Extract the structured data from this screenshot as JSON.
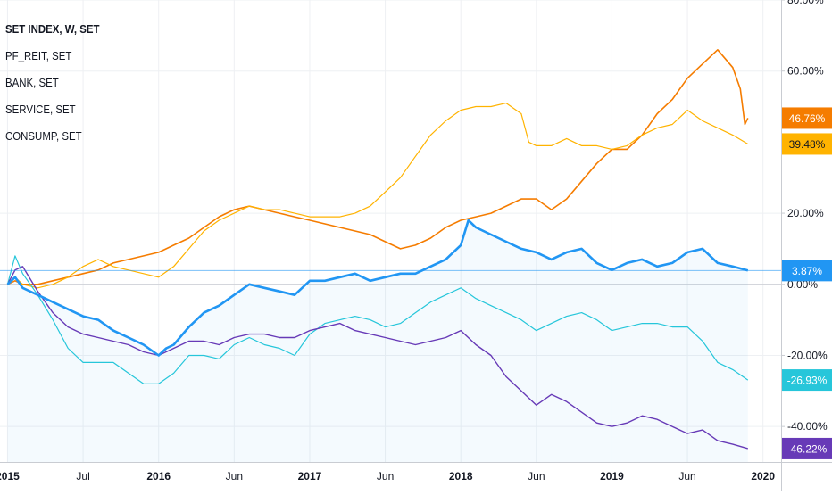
{
  "chart_data": {
    "type": "line",
    "legend": [
      {
        "label": "SET INDEX, W, SET"
      },
      {
        "label": "PF_REIT, SET"
      },
      {
        "label": "BANK, SET"
      },
      {
        "label": "SERVICE, SET"
      },
      {
        "label": "CONSUMP, SET"
      }
    ],
    "y_ticks": [
      {
        "value": 80,
        "label": "80.00%"
      },
      {
        "value": 60,
        "label": "60.00%"
      },
      {
        "value": 20,
        "label": "20.00%"
      },
      {
        "value": 0,
        "label": "0.00%"
      },
      {
        "value": -20,
        "label": "-20.00%"
      },
      {
        "value": -40,
        "label": "-40.00%"
      }
    ],
    "x_ticks": [
      {
        "x": 2015.0,
        "label": "2015"
      },
      {
        "x": 2015.5,
        "label": "Jul"
      },
      {
        "x": 2016.0,
        "label": "2016"
      },
      {
        "x": 2016.5,
        "label": "Jun"
      },
      {
        "x": 2017.0,
        "label": "2017"
      },
      {
        "x": 2017.5,
        "label": "Jun"
      },
      {
        "x": 2018.0,
        "label": "2018"
      },
      {
        "x": 2018.5,
        "label": "Jun"
      },
      {
        "x": 2019.0,
        "label": "2019"
      },
      {
        "x": 2019.5,
        "label": "Jun"
      },
      {
        "x": 2020.0,
        "label": "2020"
      }
    ],
    "ylim": [
      -50,
      80
    ],
    "xlim": [
      2014.95,
      2020.12
    ],
    "grid": true,
    "series": [
      {
        "key": "set_index",
        "color": "#2196f3",
        "width": 2.6,
        "area": true,
        "last_label": "3.87%",
        "points": [
          [
            2015.0,
            0
          ],
          [
            2015.05,
            2
          ],
          [
            2015.1,
            -1
          ],
          [
            2015.2,
            -3
          ],
          [
            2015.3,
            -5
          ],
          [
            2015.4,
            -7
          ],
          [
            2015.5,
            -9
          ],
          [
            2015.6,
            -10
          ],
          [
            2015.7,
            -13
          ],
          [
            2015.8,
            -15
          ],
          [
            2015.9,
            -17
          ],
          [
            2016.0,
            -20
          ],
          [
            2016.05,
            -18
          ],
          [
            2016.1,
            -17
          ],
          [
            2016.2,
            -12
          ],
          [
            2016.3,
            -8
          ],
          [
            2016.4,
            -6
          ],
          [
            2016.5,
            -3
          ],
          [
            2016.6,
            0
          ],
          [
            2016.7,
            -1
          ],
          [
            2016.8,
            -2
          ],
          [
            2016.9,
            -3
          ],
          [
            2017.0,
            1
          ],
          [
            2017.1,
            1
          ],
          [
            2017.2,
            2
          ],
          [
            2017.3,
            3
          ],
          [
            2017.4,
            1
          ],
          [
            2017.5,
            2
          ],
          [
            2017.6,
            3
          ],
          [
            2017.7,
            3
          ],
          [
            2017.8,
            5
          ],
          [
            2017.9,
            7
          ],
          [
            2018.0,
            11
          ],
          [
            2018.05,
            18
          ],
          [
            2018.1,
            16
          ],
          [
            2018.2,
            14
          ],
          [
            2018.3,
            12
          ],
          [
            2018.4,
            10
          ],
          [
            2018.5,
            9
          ],
          [
            2018.6,
            7
          ],
          [
            2018.7,
            9
          ],
          [
            2018.8,
            10
          ],
          [
            2018.9,
            6
          ],
          [
            2019.0,
            4
          ],
          [
            2019.1,
            6
          ],
          [
            2019.2,
            7
          ],
          [
            2019.3,
            5
          ],
          [
            2019.4,
            6
          ],
          [
            2019.5,
            9
          ],
          [
            2019.6,
            10
          ],
          [
            2019.7,
            6
          ],
          [
            2019.8,
            5
          ],
          [
            2019.9,
            3.87
          ]
        ]
      },
      {
        "key": "pf_reit",
        "color": "#f57c00",
        "width": 1.6,
        "area": false,
        "last_label": "46.76%",
        "points": [
          [
            2015.0,
            0
          ],
          [
            2015.05,
            1
          ],
          [
            2015.1,
            0
          ],
          [
            2015.2,
            0
          ],
          [
            2015.3,
            1
          ],
          [
            2015.4,
            2
          ],
          [
            2015.5,
            3
          ],
          [
            2015.6,
            4
          ],
          [
            2015.7,
            6
          ],
          [
            2015.8,
            7
          ],
          [
            2015.9,
            8
          ],
          [
            2016.0,
            9
          ],
          [
            2016.05,
            10
          ],
          [
            2016.1,
            11
          ],
          [
            2016.2,
            13
          ],
          [
            2016.3,
            16
          ],
          [
            2016.4,
            19
          ],
          [
            2016.5,
            21
          ],
          [
            2016.6,
            22
          ],
          [
            2016.7,
            21
          ],
          [
            2016.8,
            20
          ],
          [
            2016.9,
            19
          ],
          [
            2017.0,
            18
          ],
          [
            2017.1,
            17
          ],
          [
            2017.2,
            16
          ],
          [
            2017.3,
            15
          ],
          [
            2017.4,
            14
          ],
          [
            2017.5,
            12
          ],
          [
            2017.6,
            10
          ],
          [
            2017.7,
            11
          ],
          [
            2017.8,
            13
          ],
          [
            2017.9,
            16
          ],
          [
            2018.0,
            18
          ],
          [
            2018.1,
            19
          ],
          [
            2018.2,
            20
          ],
          [
            2018.3,
            22
          ],
          [
            2018.4,
            24
          ],
          [
            2018.5,
            24
          ],
          [
            2018.6,
            21
          ],
          [
            2018.7,
            24
          ],
          [
            2018.8,
            29
          ],
          [
            2018.9,
            34
          ],
          [
            2019.0,
            38
          ],
          [
            2019.1,
            38
          ],
          [
            2019.2,
            42
          ],
          [
            2019.3,
            48
          ],
          [
            2019.4,
            52
          ],
          [
            2019.5,
            58
          ],
          [
            2019.6,
            62
          ],
          [
            2019.7,
            66
          ],
          [
            2019.8,
            61
          ],
          [
            2019.85,
            55
          ],
          [
            2019.88,
            45
          ],
          [
            2019.9,
            46.76
          ]
        ]
      },
      {
        "key": "bank",
        "color": "#ffb300",
        "width": 1.2,
        "area": false,
        "last_label": "39.48%",
        "points": [
          [
            2015.0,
            0
          ],
          [
            2015.05,
            2
          ],
          [
            2015.1,
            0
          ],
          [
            2015.2,
            -1
          ],
          [
            2015.3,
            0
          ],
          [
            2015.4,
            2
          ],
          [
            2015.5,
            5
          ],
          [
            2015.6,
            7
          ],
          [
            2015.7,
            5
          ],
          [
            2015.8,
            4
          ],
          [
            2015.9,
            3
          ],
          [
            2016.0,
            2
          ],
          [
            2016.1,
            5
          ],
          [
            2016.2,
            10
          ],
          [
            2016.3,
            15
          ],
          [
            2016.4,
            18
          ],
          [
            2016.5,
            20
          ],
          [
            2016.6,
            22
          ],
          [
            2016.7,
            21
          ],
          [
            2016.8,
            21
          ],
          [
            2016.9,
            20
          ],
          [
            2017.0,
            19
          ],
          [
            2017.1,
            19
          ],
          [
            2017.2,
            19
          ],
          [
            2017.3,
            20
          ],
          [
            2017.4,
            22
          ],
          [
            2017.5,
            26
          ],
          [
            2017.6,
            30
          ],
          [
            2017.7,
            36
          ],
          [
            2017.8,
            42
          ],
          [
            2017.9,
            46
          ],
          [
            2018.0,
            49
          ],
          [
            2018.1,
            50
          ],
          [
            2018.2,
            50
          ],
          [
            2018.3,
            51
          ],
          [
            2018.4,
            48
          ],
          [
            2018.45,
            40
          ],
          [
            2018.5,
            39
          ],
          [
            2018.6,
            39
          ],
          [
            2018.7,
            41
          ],
          [
            2018.8,
            39
          ],
          [
            2018.9,
            39
          ],
          [
            2019.0,
            38
          ],
          [
            2019.1,
            39
          ],
          [
            2019.2,
            42
          ],
          [
            2019.3,
            44
          ],
          [
            2019.4,
            45
          ],
          [
            2019.5,
            49
          ],
          [
            2019.6,
            46
          ],
          [
            2019.7,
            44
          ],
          [
            2019.8,
            42
          ],
          [
            2019.9,
            39.48
          ]
        ]
      },
      {
        "key": "service",
        "color": "#26c6da",
        "width": 1.2,
        "area": false,
        "last_label": "-26.93%",
        "points": [
          [
            2015.0,
            0
          ],
          [
            2015.05,
            8
          ],
          [
            2015.1,
            3
          ],
          [
            2015.2,
            -3
          ],
          [
            2015.3,
            -10
          ],
          [
            2015.4,
            -18
          ],
          [
            2015.5,
            -22
          ],
          [
            2015.6,
            -22
          ],
          [
            2015.7,
            -22
          ],
          [
            2015.8,
            -25
          ],
          [
            2015.9,
            -28
          ],
          [
            2016.0,
            -28
          ],
          [
            2016.1,
            -25
          ],
          [
            2016.2,
            -20
          ],
          [
            2016.3,
            -20
          ],
          [
            2016.4,
            -21
          ],
          [
            2016.5,
            -17
          ],
          [
            2016.6,
            -15
          ],
          [
            2016.7,
            -17
          ],
          [
            2016.8,
            -18
          ],
          [
            2016.9,
            -20
          ],
          [
            2017.0,
            -14
          ],
          [
            2017.1,
            -11
          ],
          [
            2017.2,
            -10
          ],
          [
            2017.3,
            -9
          ],
          [
            2017.4,
            -10
          ],
          [
            2017.5,
            -12
          ],
          [
            2017.6,
            -11
          ],
          [
            2017.7,
            -8
          ],
          [
            2017.8,
            -5
          ],
          [
            2017.9,
            -3
          ],
          [
            2018.0,
            -1
          ],
          [
            2018.1,
            -4
          ],
          [
            2018.2,
            -6
          ],
          [
            2018.3,
            -8
          ],
          [
            2018.4,
            -10
          ],
          [
            2018.5,
            -13
          ],
          [
            2018.6,
            -11
          ],
          [
            2018.7,
            -9
          ],
          [
            2018.8,
            -8
          ],
          [
            2018.9,
            -10
          ],
          [
            2019.0,
            -13
          ],
          [
            2019.1,
            -12
          ],
          [
            2019.2,
            -11
          ],
          [
            2019.3,
            -11
          ],
          [
            2019.4,
            -12
          ],
          [
            2019.5,
            -12
          ],
          [
            2019.6,
            -16
          ],
          [
            2019.7,
            -22
          ],
          [
            2019.8,
            -24
          ],
          [
            2019.9,
            -26.93
          ]
        ]
      },
      {
        "key": "consump",
        "color": "#673ab7",
        "width": 1.4,
        "area": false,
        "last_label": "-46.22%",
        "points": [
          [
            2015.0,
            0
          ],
          [
            2015.05,
            4
          ],
          [
            2015.1,
            5
          ],
          [
            2015.2,
            -2
          ],
          [
            2015.3,
            -8
          ],
          [
            2015.4,
            -12
          ],
          [
            2015.5,
            -14
          ],
          [
            2015.6,
            -15
          ],
          [
            2015.7,
            -16
          ],
          [
            2015.8,
            -17
          ],
          [
            2015.9,
            -19
          ],
          [
            2016.0,
            -20
          ],
          [
            2016.1,
            -18
          ],
          [
            2016.2,
            -16
          ],
          [
            2016.3,
            -16
          ],
          [
            2016.4,
            -17
          ],
          [
            2016.5,
            -15
          ],
          [
            2016.6,
            -14
          ],
          [
            2016.7,
            -14
          ],
          [
            2016.8,
            -15
          ],
          [
            2016.9,
            -15
          ],
          [
            2017.0,
            -13
          ],
          [
            2017.1,
            -12
          ],
          [
            2017.2,
            -11
          ],
          [
            2017.3,
            -13
          ],
          [
            2017.4,
            -14
          ],
          [
            2017.5,
            -15
          ],
          [
            2017.6,
            -16
          ],
          [
            2017.7,
            -17
          ],
          [
            2017.8,
            -16
          ],
          [
            2017.9,
            -15
          ],
          [
            2018.0,
            -13
          ],
          [
            2018.1,
            -17
          ],
          [
            2018.2,
            -20
          ],
          [
            2018.3,
            -26
          ],
          [
            2018.4,
            -30
          ],
          [
            2018.5,
            -34
          ],
          [
            2018.6,
            -31
          ],
          [
            2018.7,
            -33
          ],
          [
            2018.8,
            -36
          ],
          [
            2018.9,
            -39
          ],
          [
            2019.0,
            -40
          ],
          [
            2019.1,
            -39
          ],
          [
            2019.2,
            -37
          ],
          [
            2019.3,
            -38
          ],
          [
            2019.4,
            -40
          ],
          [
            2019.5,
            -42
          ],
          [
            2019.6,
            -41
          ],
          [
            2019.7,
            -44
          ],
          [
            2019.8,
            -45
          ],
          [
            2019.9,
            -46.22
          ]
        ]
      }
    ]
  }
}
